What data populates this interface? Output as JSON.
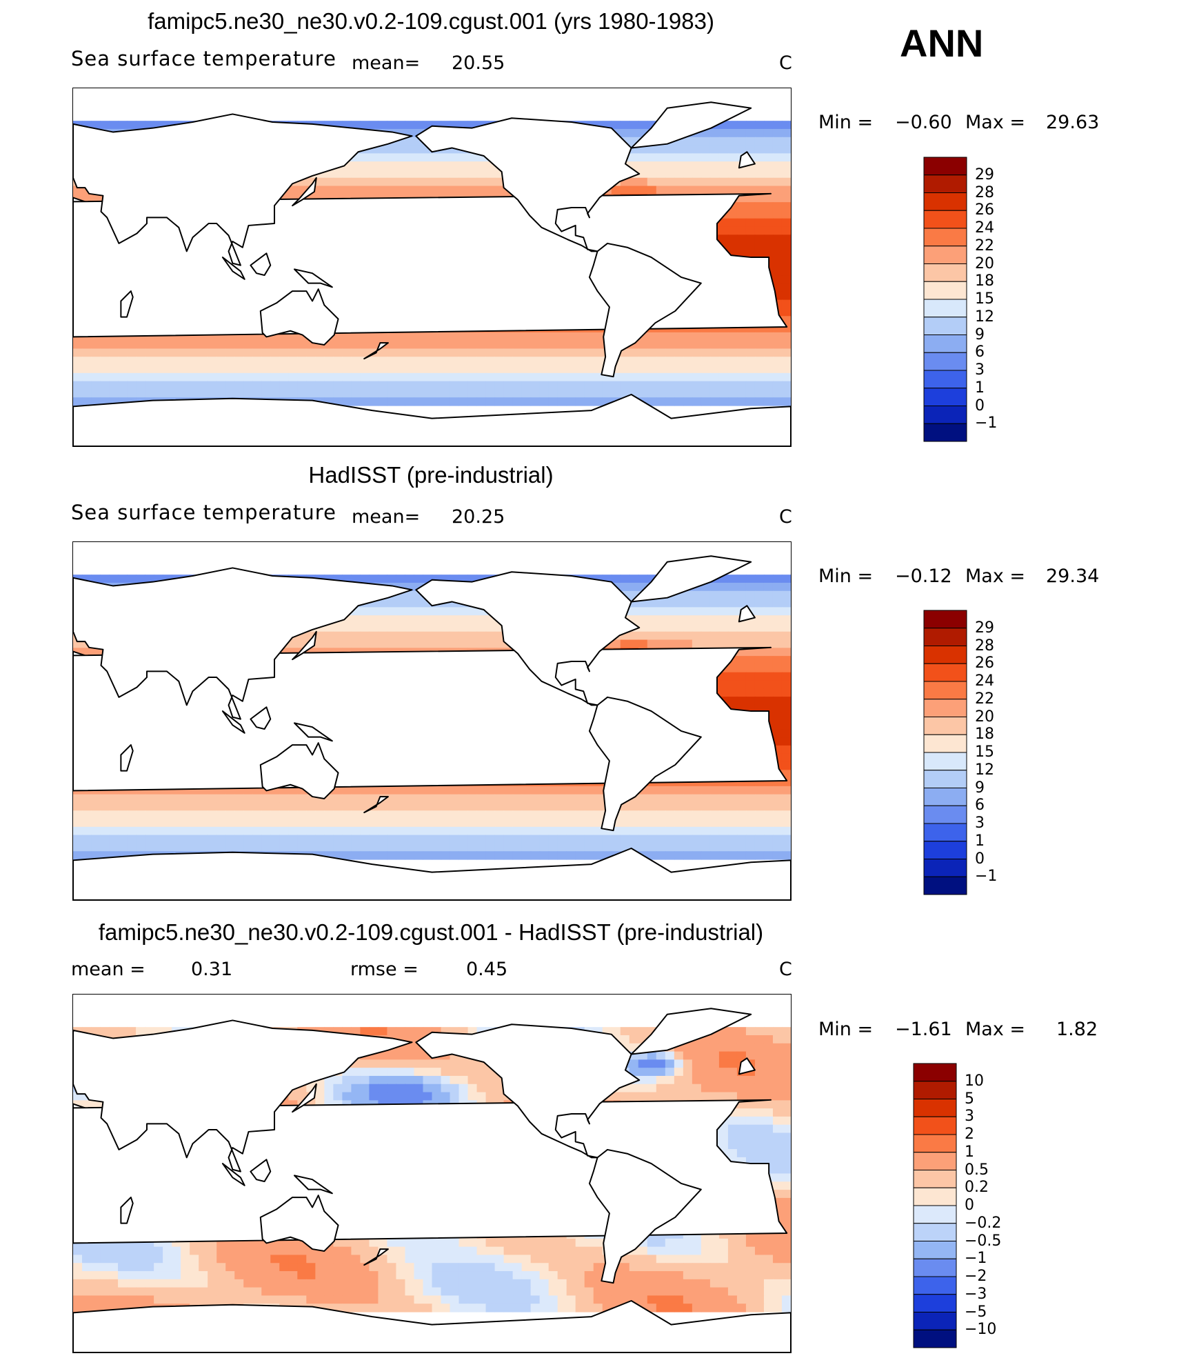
{
  "season": "ANN",
  "panels": [
    {
      "title": "famipc5.ne30_ne30.v0.2-109.cgust.001 (yrs 1980-1983)",
      "variable": "Sea surface temperature",
      "stat_label": "mean=",
      "stat_value": "20.55",
      "units": "C",
      "min_label": "Min =",
      "min_value": "−0.60",
      "max_label": "Max =",
      "max_value": "29.63",
      "colorbar": [
        "29",
        "28",
        "26",
        "24",
        "22",
        "20",
        "18",
        "15",
        "12",
        "9",
        "6",
        "3",
        "1",
        "0",
        "−1"
      ]
    },
    {
      "title": "HadISST (pre-industrial)",
      "variable": "Sea surface temperature",
      "stat_label": "mean=",
      "stat_value": "20.25",
      "units": "C",
      "min_label": "Min =",
      "min_value": "−0.12",
      "max_label": "Max =",
      "max_value": "29.34",
      "colorbar": [
        "29",
        "28",
        "26",
        "24",
        "22",
        "20",
        "18",
        "15",
        "12",
        "9",
        "6",
        "3",
        "1",
        "0",
        "−1"
      ]
    },
    {
      "title": "famipc5.ne30_ne30.v0.2-109.cgust.001 - HadISST (pre-industrial)",
      "mean_label": "mean =",
      "mean_value": "0.31",
      "rmse_label": "rmse =",
      "rmse_value": "0.45",
      "units": "C",
      "min_label": "Min =",
      "min_value": "−1.61",
      "max_label": "Max =",
      "max_value": "1.82",
      "colorbar": [
        "10",
        "5",
        "3",
        "2",
        "1",
        "0.5",
        "0.2",
        "0",
        "−0.2",
        "−0.5",
        "−1",
        "−2",
        "−3",
        "−5",
        "−10"
      ]
    }
  ],
  "colors": {
    "sst_scale": [
      "#8b0000",
      "#b01b00",
      "#d93200",
      "#f2511a",
      "#fa7a45",
      "#fca078",
      "#fcc6a6",
      "#fde6d2",
      "#d8e8fb",
      "#b3cdf7",
      "#8cadf2",
      "#6a8cf0",
      "#3d63eb",
      "#1d3fdc",
      "#0b24b8",
      "#001080"
    ],
    "diff_scale": [
      "#8b0000",
      "#b01b00",
      "#d93200",
      "#f2511a",
      "#fa7a45",
      "#fca078",
      "#fcc6a6",
      "#fde6d2",
      "#dce9fb",
      "#bcd3f9",
      "#94b6f4",
      "#6a8cf0",
      "#3d63eb",
      "#1d3fdc",
      "#0b24b8",
      "#001080"
    ]
  },
  "chart_data": [
    {
      "type": "heatmap",
      "title": "famipc5.ne30_ne30.v0.2-109.cgust.001 (yrs 1980-1983)",
      "variable": "Sea surface temperature",
      "units": "C",
      "mean": 20.55,
      "min": -0.6,
      "max": 29.63,
      "contour_levels": [
        -1,
        0,
        1,
        3,
        6,
        9,
        12,
        15,
        18,
        20,
        22,
        24,
        26,
        28,
        29
      ]
    },
    {
      "type": "heatmap",
      "title": "HadISST (pre-industrial)",
      "variable": "Sea surface temperature",
      "units": "C",
      "mean": 20.25,
      "min": -0.12,
      "max": 29.34,
      "contour_levels": [
        -1,
        0,
        1,
        3,
        6,
        9,
        12,
        15,
        18,
        20,
        22,
        24,
        26,
        28,
        29
      ]
    },
    {
      "type": "heatmap",
      "title": "famipc5.ne30_ne30.v0.2-109.cgust.001 - HadISST (pre-industrial)",
      "units": "C",
      "mean": 0.31,
      "rmse": 0.45,
      "min": -1.61,
      "max": 1.82,
      "contour_levels": [
        -10,
        -5,
        -3,
        -2,
        -1,
        -0.5,
        -0.2,
        0,
        0.2,
        0.5,
        1,
        2,
        3,
        5,
        10
      ]
    }
  ]
}
